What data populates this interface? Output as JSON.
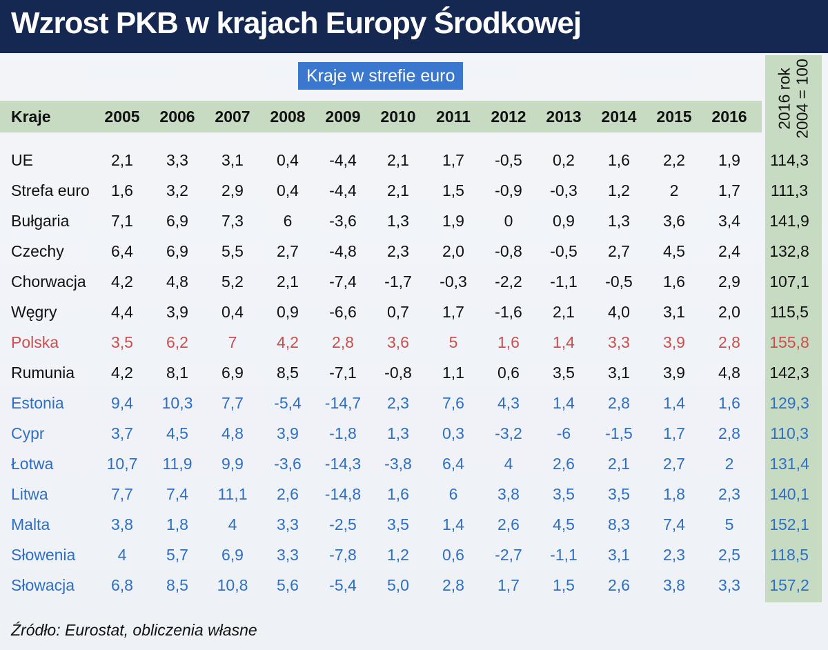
{
  "title": "Wzrost PKB w krajach Europy Środkowej",
  "legend_label": "Kraje w strefie euro",
  "source": "Źródło: Eurostat, obliczenia własne",
  "colors": {
    "header_bg": "#152851",
    "euro_blue": "#2e6fc4",
    "poland_red": "#c9504d",
    "band_green": "#c6dbc1"
  },
  "chart_data": {
    "type": "table",
    "title": "Wzrost PKB w krajach Europy Środkowej",
    "columns": [
      "Kraje",
      "2005",
      "2006",
      "2007",
      "2008",
      "2009",
      "2010",
      "2011",
      "2012",
      "2013",
      "2014",
      "2015",
      "2016"
    ],
    "index_column": {
      "line1": "2016 rok",
      "line2": "2004 = 100"
    },
    "rows": [
      {
        "name": "UE",
        "group": "default",
        "values": [
          "2,1",
          "3,3",
          "3,1",
          "0,4",
          "-4,4",
          "2,1",
          "1,7",
          "-0,5",
          "0,2",
          "1,6",
          "2,2",
          "1,9"
        ],
        "index": "114,3"
      },
      {
        "name": "Strefa euro",
        "group": "default",
        "values": [
          "1,6",
          "3,2",
          "2,9",
          "0,4",
          "-4,4",
          "2,1",
          "1,5",
          "-0,9",
          "-0,3",
          "1,2",
          "2",
          "1,7"
        ],
        "index": "111,3"
      },
      {
        "name": "Bułgaria",
        "group": "default",
        "values": [
          "7,1",
          "6,9",
          "7,3",
          "6",
          "-3,6",
          "1,3",
          "1,9",
          "0",
          "0,9",
          "1,3",
          "3,6",
          "3,4"
        ],
        "index": "141,9"
      },
      {
        "name": "Czechy",
        "group": "default",
        "values": [
          "6,4",
          "6,9",
          "5,5",
          "2,7",
          "-4,8",
          "2,3",
          "2,0",
          "-0,8",
          "-0,5",
          "2,7",
          "4,5",
          "2,4"
        ],
        "index": "132,8"
      },
      {
        "name": "Chorwacja",
        "group": "default",
        "values": [
          "4,2",
          "4,8",
          "5,2",
          "2,1",
          "-7,4",
          "-1,7",
          "-0,3",
          "-2,2",
          "-1,1",
          "-0,5",
          "1,6",
          "2,9"
        ],
        "index": "107,1"
      },
      {
        "name": "Węgry",
        "group": "default",
        "values": [
          "4,4",
          "3,9",
          "0,4",
          "0,9",
          "-6,6",
          "0,7",
          "1,7",
          "-1,6",
          "2,1",
          "4,0",
          "3,1",
          "2,0"
        ],
        "index": "115,5"
      },
      {
        "name": "Polska",
        "group": "poland",
        "values": [
          "3,5",
          "6,2",
          "7",
          "4,2",
          "2,8",
          "3,6",
          "5",
          "1,6",
          "1,4",
          "3,3",
          "3,9",
          "2,8"
        ],
        "index": "155,8"
      },
      {
        "name": "Rumunia",
        "group": "default",
        "values": [
          "4,2",
          "8,1",
          "6,9",
          "8,5",
          "-7,1",
          "-0,8",
          "1,1",
          "0,6",
          "3,5",
          "3,1",
          "3,9",
          "4,8"
        ],
        "index": "142,3"
      },
      {
        "name": "Estonia",
        "group": "euro",
        "values": [
          "9,4",
          "10,3",
          "7,7",
          "-5,4",
          "-14,7",
          "2,3",
          "7,6",
          "4,3",
          "1,4",
          "2,8",
          "1,4",
          "1,6"
        ],
        "index": "129,3"
      },
      {
        "name": "Cypr",
        "group": "euro",
        "values": [
          "3,7",
          "4,5",
          "4,8",
          "3,9",
          "-1,8",
          "1,3",
          "0,3",
          "-3,2",
          "-6",
          "-1,5",
          "1,7",
          "2,8"
        ],
        "index": "110,3"
      },
      {
        "name": "Łotwa",
        "group": "euro",
        "values": [
          "10,7",
          "11,9",
          "9,9",
          "-3,6",
          "-14,3",
          "-3,8",
          "6,4",
          "4",
          "2,6",
          "2,1",
          "2,7",
          "2"
        ],
        "index": "131,4"
      },
      {
        "name": "Litwa",
        "group": "euro",
        "values": [
          "7,7",
          "7,4",
          "11,1",
          "2,6",
          "-14,8",
          "1,6",
          "6",
          "3,8",
          "3,5",
          "3,5",
          "1,8",
          "2,3"
        ],
        "index": "140,1"
      },
      {
        "name": "Malta",
        "group": "euro",
        "values": [
          "3,8",
          "1,8",
          "4",
          "3,3",
          "-2,5",
          "3,5",
          "1,4",
          "2,6",
          "4,5",
          "8,3",
          "7,4",
          "5"
        ],
        "index": "152,1"
      },
      {
        "name": "Słowenia",
        "group": "euro",
        "values": [
          "4",
          "5,7",
          "6,9",
          "3,3",
          "-7,8",
          "1,2",
          "0,6",
          "-2,7",
          "-1,1",
          "3,1",
          "2,3",
          "2,5"
        ],
        "index": "118,5"
      },
      {
        "name": "Słowacja",
        "group": "euro",
        "values": [
          "6,8",
          "8,5",
          "10,8",
          "5,6",
          "-5,4",
          "5,0",
          "2,8",
          "1,7",
          "1,5",
          "2,6",
          "3,8",
          "3,3"
        ],
        "index": "157,2"
      }
    ]
  }
}
